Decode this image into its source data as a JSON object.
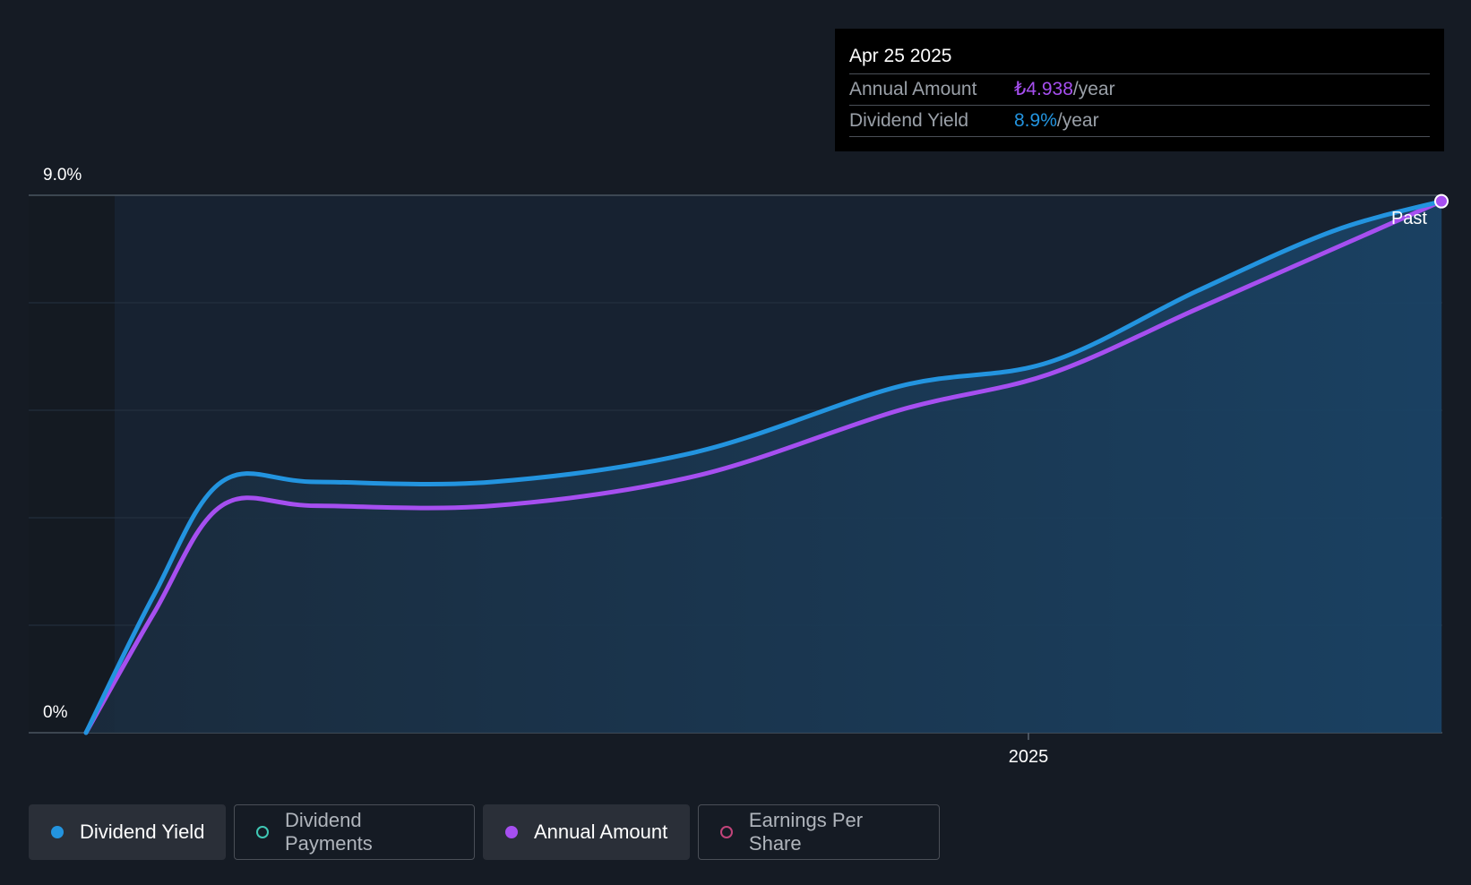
{
  "tooltip": {
    "date": "Apr 25 2025",
    "annual_amount_label": "Annual Amount",
    "annual_amount_value": "₺4.938",
    "annual_amount_unit": "/year",
    "dividend_yield_label": "Dividend Yield",
    "dividend_yield_value": "8.9%",
    "dividend_yield_unit": "/year"
  },
  "legend": [
    {
      "label": "Dividend Yield",
      "color": "#2394df",
      "active": true
    },
    {
      "label": "Dividend Payments",
      "color": "#3fc7b4",
      "active": false
    },
    {
      "label": "Annual Amount",
      "color": "#a64ff0",
      "active": true
    },
    {
      "label": "Earnings Per Share",
      "color": "#c1447a",
      "active": false
    }
  ],
  "chart_data": {
    "type": "line",
    "title": "",
    "xlabel": "",
    "ylabel": "",
    "ylim": [
      0,
      9.0
    ],
    "y_tick_labels": [
      "0%",
      "9.0%"
    ],
    "x_tick_labels": [
      "2025"
    ],
    "marker_label": "Past",
    "x": [
      0,
      0.05,
      0.1,
      0.17,
      0.3,
      0.45,
      0.6,
      0.71,
      0.82,
      0.92,
      1.0
    ],
    "series": [
      {
        "name": "Dividend Yield",
        "color": "#2394df",
        "values": [
          0,
          2.3,
          4.2,
          4.2,
          4.2,
          4.7,
          5.8,
          6.2,
          7.4,
          8.4,
          8.9
        ]
      },
      {
        "name": "Annual Amount",
        "color": "#a64ff0",
        "values": [
          0,
          2.0,
          3.8,
          3.8,
          3.8,
          4.3,
          5.4,
          6.0,
          7.1,
          8.1,
          8.9
        ]
      }
    ]
  }
}
